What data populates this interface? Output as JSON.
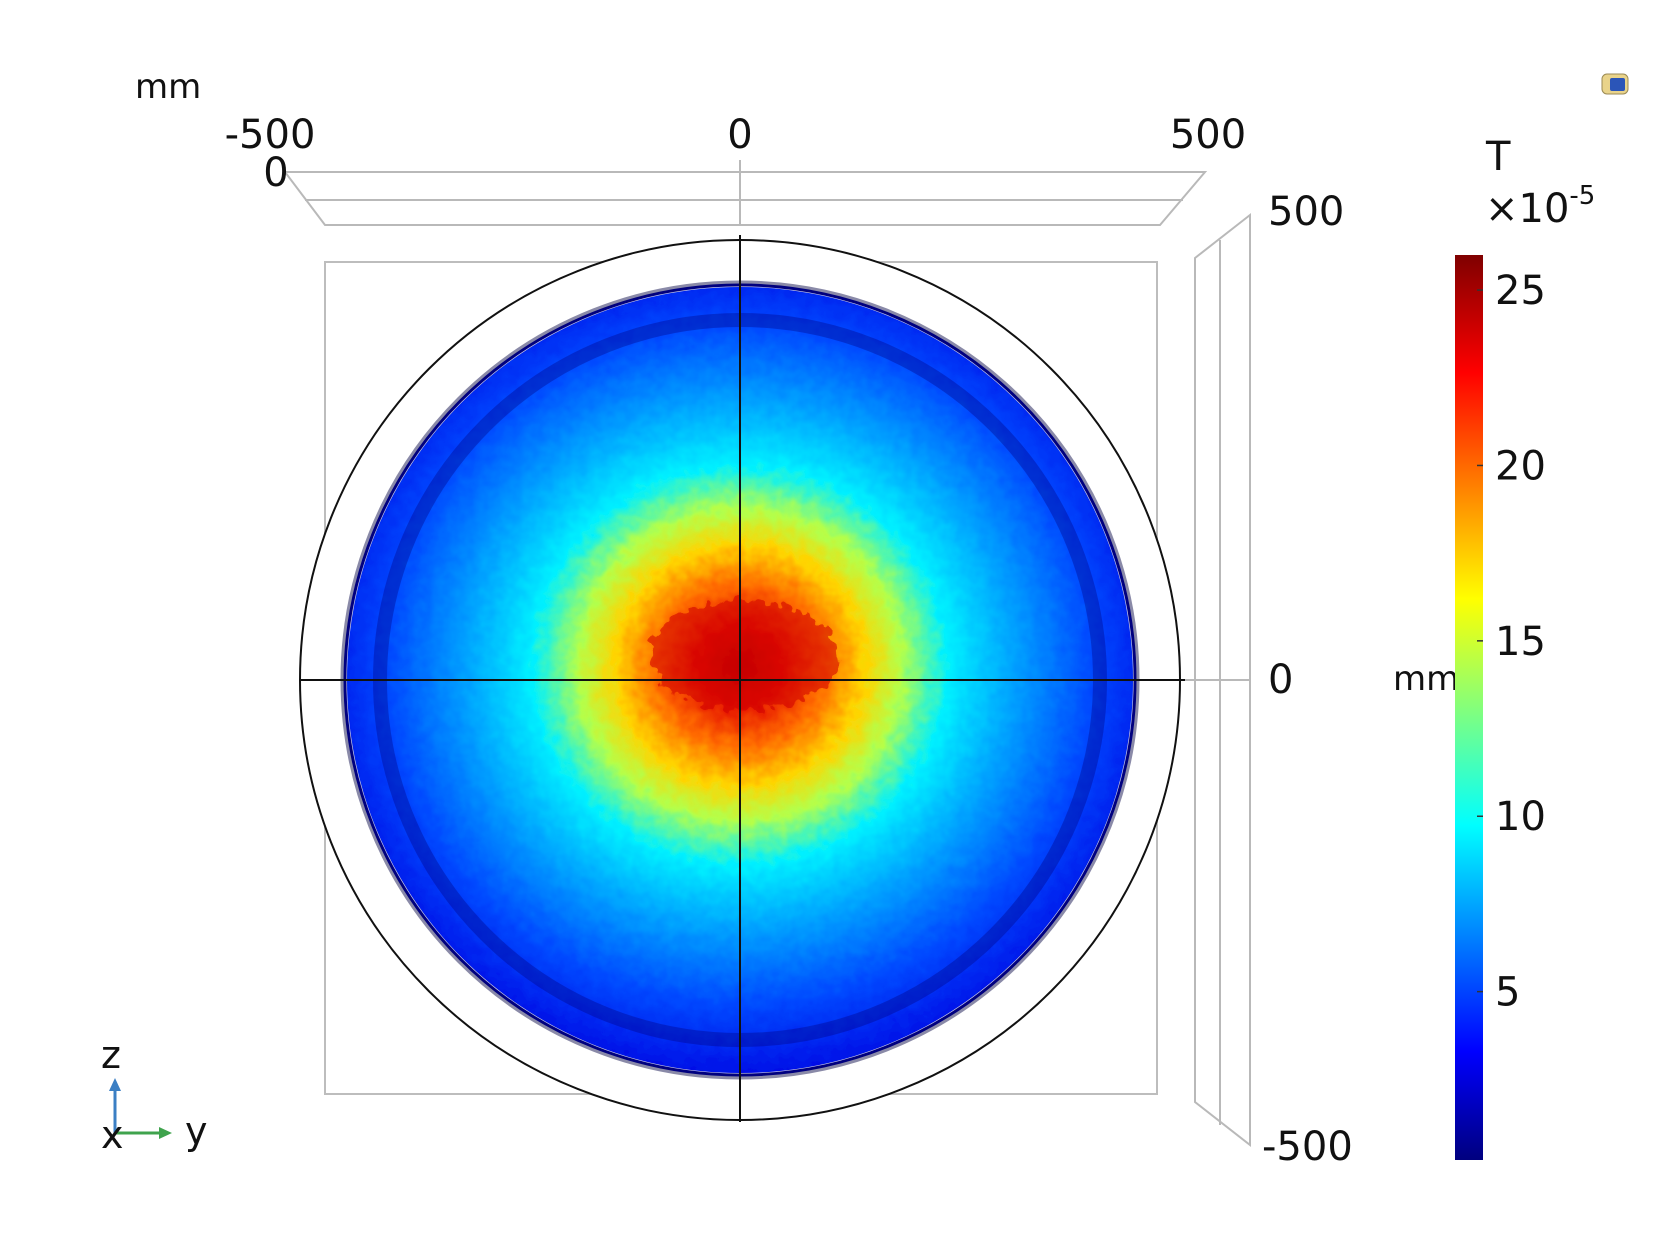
{
  "chart_data": {
    "type": "heatmap",
    "top_axis": {
      "unit": "mm",
      "ticks": [
        "-500",
        "0",
        "500"
      ],
      "depth_tick": "0",
      "range": [
        -500,
        500
      ]
    },
    "right_axis": {
      "unit": "mm",
      "ticks": [
        "500",
        "0",
        "-500"
      ],
      "range": [
        -500,
        500
      ]
    },
    "colorbar": {
      "title": "T",
      "multiplier": "×10",
      "exponent": "-5",
      "ticks": [
        "25",
        "20",
        "15",
        "10",
        "5"
      ],
      "tick_values": [
        25,
        20,
        15,
        10,
        5
      ],
      "range": [
        0.2,
        26
      ],
      "colormap": "rainbow"
    },
    "field": {
      "domain": "disk",
      "peak_value": 25,
      "peak_center_mm": [
        0,
        30
      ],
      "min_value": 0.2,
      "description_values": {
        "center": 25,
        "mid_radius": 7,
        "rim": 1
      }
    },
    "triad": {
      "up": "z",
      "right": "y",
      "out": "x"
    },
    "colors": {
      "dark_navy": "#00007f",
      "blue": "#0000ff",
      "cyan": "#00ffff",
      "yellow": "#ffff00",
      "red": "#ff0000",
      "dark_red": "#7f0000",
      "triad_z": "#3b7fc4",
      "triad_y": "#3fa34d"
    }
  }
}
